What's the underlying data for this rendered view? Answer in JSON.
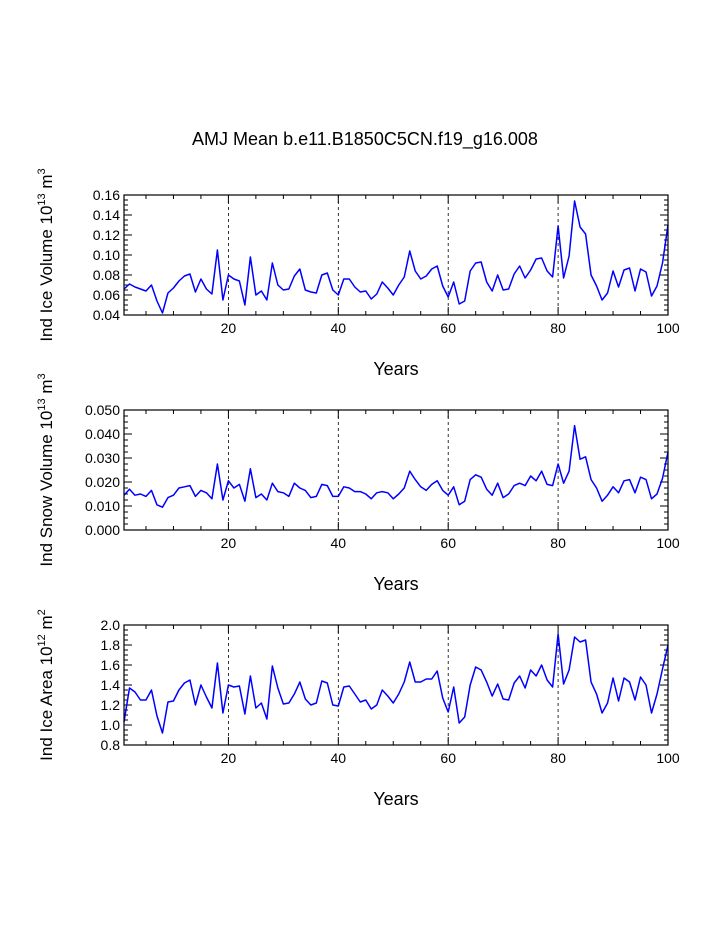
{
  "title": "AMJ Mean b.e11.B1850C5CN.f19_g16.008",
  "colors": {
    "series": "#0000ff",
    "axis": "#000000",
    "grid": "#000000",
    "background": "#ffffff"
  },
  "chart_data": [
    {
      "type": "line",
      "name": "ice-volume",
      "ylabel_main": "Ind Ice Volume 10",
      "ylabel_exp": "13",
      "ylabel_unit": " m",
      "ylabel_unit_exp": "3",
      "xlabel": "Years",
      "xlim": [
        1,
        100
      ],
      "ylim": [
        0.04,
        0.16
      ],
      "xticks": [
        20,
        40,
        60,
        80,
        100
      ],
      "xtick_labels": [
        "20",
        "40",
        "60",
        "80",
        "100"
      ],
      "yticks": [
        0.04,
        0.06,
        0.08,
        0.1,
        0.12,
        0.14,
        0.16
      ],
      "ytick_labels": [
        "0.04",
        "0.06",
        "0.08",
        "0.10",
        "0.12",
        "0.14",
        "0.16"
      ],
      "gridlines_x": [
        20,
        40,
        60,
        80
      ],
      "x_start": 1,
      "values": [
        0.066,
        0.071,
        0.068,
        0.066,
        0.064,
        0.07,
        0.054,
        0.042,
        0.062,
        0.067,
        0.074,
        0.079,
        0.081,
        0.063,
        0.076,
        0.066,
        0.061,
        0.105,
        0.055,
        0.08,
        0.076,
        0.074,
        0.05,
        0.098,
        0.06,
        0.064,
        0.055,
        0.092,
        0.07,
        0.065,
        0.066,
        0.079,
        0.086,
        0.065,
        0.063,
        0.062,
        0.08,
        0.082,
        0.065,
        0.06,
        0.076,
        0.076,
        0.068,
        0.063,
        0.064,
        0.056,
        0.061,
        0.073,
        0.067,
        0.06,
        0.07,
        0.078,
        0.104,
        0.084,
        0.076,
        0.079,
        0.086,
        0.089,
        0.069,
        0.058,
        0.073,
        0.051,
        0.054,
        0.084,
        0.092,
        0.093,
        0.073,
        0.064,
        0.08,
        0.065,
        0.066,
        0.081,
        0.089,
        0.077,
        0.085,
        0.096,
        0.097,
        0.084,
        0.078,
        0.129,
        0.077,
        0.099,
        0.154,
        0.128,
        0.121,
        0.08,
        0.069,
        0.055,
        0.062,
        0.084,
        0.068,
        0.085,
        0.087,
        0.064,
        0.086,
        0.083,
        0.059,
        0.069,
        0.092,
        0.13
      ]
    },
    {
      "type": "line",
      "name": "snow-volume",
      "ylabel_main": "Ind Snow Volume 10",
      "ylabel_exp": "13",
      "ylabel_unit": " m",
      "ylabel_unit_exp": "3",
      "xlabel": "Years",
      "xlim": [
        1,
        100
      ],
      "ylim": [
        0.0,
        0.05
      ],
      "xticks": [
        20,
        40,
        60,
        80,
        100
      ],
      "xtick_labels": [
        "20",
        "40",
        "60",
        "80",
        "100"
      ],
      "yticks": [
        0.0,
        0.01,
        0.02,
        0.03,
        0.04,
        0.05
      ],
      "ytick_labels": [
        "0.000",
        "0.010",
        "0.020",
        "0.030",
        "0.040",
        "0.050"
      ],
      "gridlines_x": [
        20,
        40,
        60,
        80
      ],
      "x_start": 1,
      "values": [
        0.0145,
        0.017,
        0.0145,
        0.015,
        0.014,
        0.0165,
        0.0105,
        0.0095,
        0.0135,
        0.0145,
        0.0175,
        0.018,
        0.0185,
        0.014,
        0.0165,
        0.0155,
        0.013,
        0.0275,
        0.0125,
        0.0205,
        0.0175,
        0.019,
        0.012,
        0.0255,
        0.0135,
        0.015,
        0.0125,
        0.0195,
        0.016,
        0.0155,
        0.014,
        0.0195,
        0.0175,
        0.0165,
        0.0135,
        0.014,
        0.019,
        0.0185,
        0.014,
        0.014,
        0.018,
        0.0175,
        0.016,
        0.016,
        0.015,
        0.013,
        0.0155,
        0.016,
        0.0155,
        0.013,
        0.015,
        0.0175,
        0.0245,
        0.021,
        0.018,
        0.0165,
        0.019,
        0.0205,
        0.0165,
        0.0145,
        0.018,
        0.0105,
        0.012,
        0.021,
        0.023,
        0.022,
        0.017,
        0.0145,
        0.0195,
        0.0135,
        0.015,
        0.0185,
        0.0195,
        0.0185,
        0.0225,
        0.0205,
        0.0245,
        0.019,
        0.0185,
        0.0275,
        0.0195,
        0.0245,
        0.0435,
        0.0295,
        0.0305,
        0.021,
        0.0175,
        0.012,
        0.0145,
        0.018,
        0.0155,
        0.0205,
        0.021,
        0.0155,
        0.022,
        0.021,
        0.013,
        0.015,
        0.0215,
        0.0325
      ]
    },
    {
      "type": "line",
      "name": "ice-area",
      "ylabel_main": "Ind Ice Area 10",
      "ylabel_exp": "12",
      "ylabel_unit": " m",
      "ylabel_unit_exp": "2",
      "xlabel": "Years",
      "xlim": [
        1,
        100
      ],
      "ylim": [
        0.8,
        2.0
      ],
      "xticks": [
        20,
        40,
        60,
        80,
        100
      ],
      "xtick_labels": [
        "20",
        "40",
        "60",
        "80",
        "100"
      ],
      "yticks": [
        0.8,
        1.0,
        1.2,
        1.4,
        1.6,
        1.8,
        2.0
      ],
      "ytick_labels": [
        "0.8",
        "1.0",
        "1.2",
        "1.4",
        "1.6",
        "1.8",
        "2.0"
      ],
      "gridlines_x": [
        20,
        40,
        60,
        80
      ],
      "x_start": 1,
      "values": [
        1.03,
        1.37,
        1.33,
        1.25,
        1.25,
        1.35,
        1.09,
        0.92,
        1.23,
        1.24,
        1.35,
        1.42,
        1.45,
        1.2,
        1.4,
        1.28,
        1.17,
        1.62,
        1.12,
        1.4,
        1.38,
        1.39,
        1.11,
        1.49,
        1.17,
        1.22,
        1.06,
        1.59,
        1.37,
        1.21,
        1.22,
        1.31,
        1.43,
        1.26,
        1.2,
        1.22,
        1.44,
        1.42,
        1.2,
        1.19,
        1.38,
        1.39,
        1.31,
        1.23,
        1.25,
        1.16,
        1.2,
        1.35,
        1.29,
        1.22,
        1.31,
        1.43,
        1.63,
        1.43,
        1.43,
        1.46,
        1.46,
        1.54,
        1.27,
        1.13,
        1.38,
        1.02,
        1.08,
        1.4,
        1.58,
        1.55,
        1.43,
        1.29,
        1.41,
        1.26,
        1.25,
        1.42,
        1.49,
        1.37,
        1.55,
        1.49,
        1.6,
        1.45,
        1.38,
        1.91,
        1.41,
        1.55,
        1.88,
        1.83,
        1.85,
        1.43,
        1.31,
        1.12,
        1.22,
        1.47,
        1.24,
        1.47,
        1.43,
        1.25,
        1.48,
        1.4,
        1.12,
        1.31,
        1.56,
        1.8
      ]
    }
  ]
}
